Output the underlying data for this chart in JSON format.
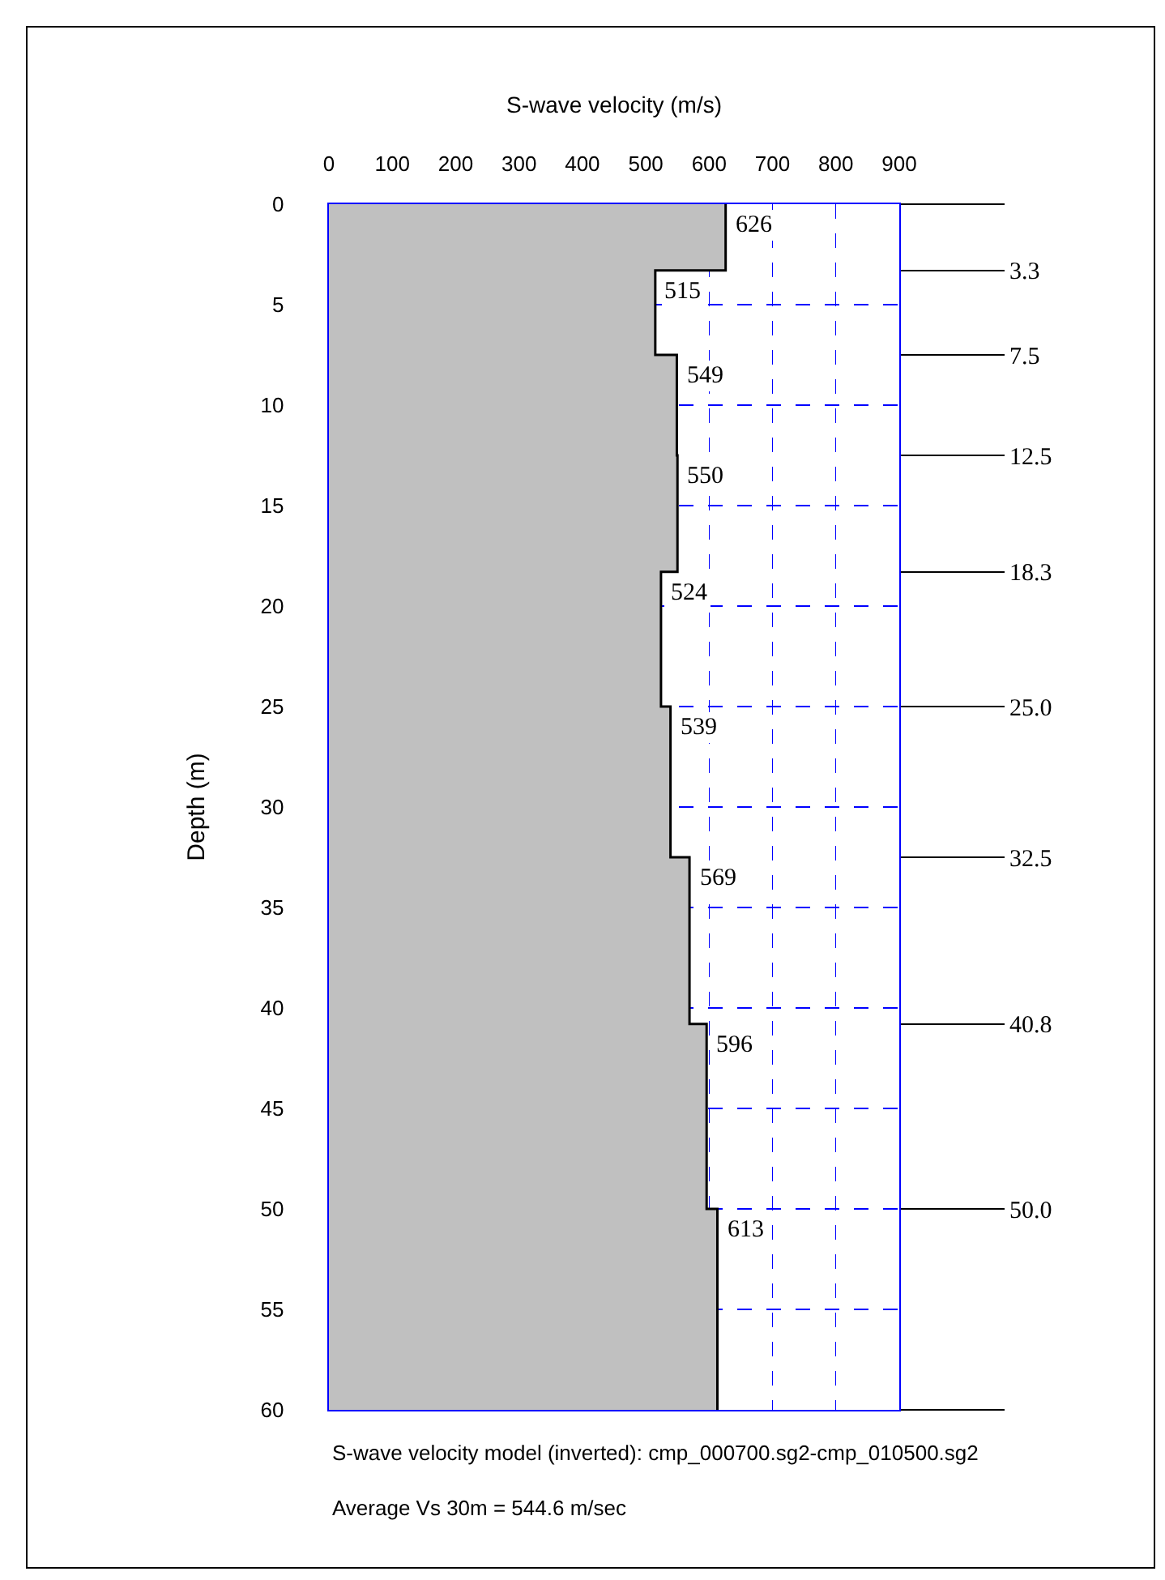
{
  "chart_data": {
    "type": "step",
    "orientation": "horizontal",
    "xlabel": "S-wave velocity (m/s)",
    "ylabel": "Depth (m)",
    "x": [
      0,
      3.3,
      7.5,
      12.5,
      18.3,
      25.0,
      32.5,
      40.8,
      50.0,
      60
    ],
    "series": [
      {
        "type": "area",
        "color": "#c0c0c0",
        "values": [
          626,
          515,
          549,
          550,
          524,
          539,
          569,
          596,
          613,
          613
        ]
      },
      {
        "color": "#000000",
        "values": [
          626,
          515,
          549,
          550,
          524,
          539,
          569,
          596,
          613,
          613
        ],
        "value_labels": [
          "626",
          "515",
          "549",
          "550",
          "524",
          "539",
          "569",
          "596",
          "613",
          null
        ]
      }
    ],
    "xlim": [
      0,
      900
    ],
    "xticks": [
      0,
      100,
      200,
      300,
      400,
      500,
      600,
      700,
      800,
      900
    ],
    "ylim": [
      60,
      0
    ],
    "yticks": [
      0,
      5,
      10,
      15,
      20,
      25,
      30,
      35,
      40,
      45,
      50,
      55,
      60
    ],
    "y2lim": [
      60,
      0
    ],
    "y2ticks": [
      {
        "value": 0,
        "label": null
      },
      3.3,
      7.5,
      12.5,
      18.3,
      {
        "value": 25,
        "label": "25.0"
      },
      32.5,
      40.8,
      {
        "value": 50,
        "label": "50.0"
      },
      {
        "value": 60,
        "label": null
      }
    ],
    "grid": true,
    "marker": "none",
    "line_style": "solid",
    "annotations": [
      "S-wave velocity model (inverted): cmp_000700.sg2-cmp_010500.sg2",
      "Average Vs 30m = 544.6 m/sec"
    ]
  }
}
